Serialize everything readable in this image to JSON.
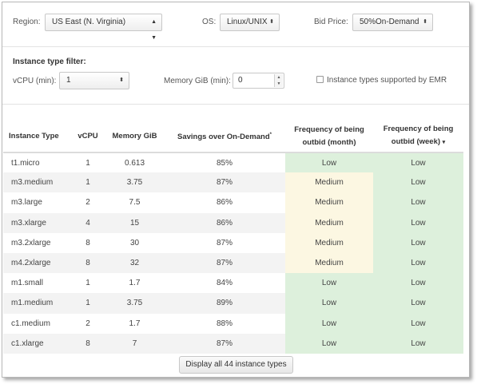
{
  "filters": {
    "region_label": "Region:",
    "region_value": "US East (N. Virginia)",
    "os_label": "OS:",
    "os_value": "Linux/UNIX",
    "bid_label": "Bid Price:",
    "bid_value": "50%On-Demand",
    "instance_filter_heading": "Instance type filter:",
    "vcpu_label": "vCPU (min):",
    "vcpu_value": "1",
    "memory_label": "Memory GiB (min):",
    "memory_value": "0",
    "emr_label": "Instance types supported by EMR",
    "emr_checked": false
  },
  "table": {
    "headers": {
      "instance_type": "Instance Type",
      "vcpu": "vCPU",
      "memory": "Memory GiB",
      "savings": "Savings over On-Demand",
      "savings_mark": "*",
      "freq_month_line1": "Frequency of being",
      "freq_month_line2": "outbid (month)",
      "freq_week_line1": "Frequency of being",
      "freq_week_line2": "outbid (week)",
      "sort_indicator": "▾"
    },
    "rows": [
      {
        "type": "t1.micro",
        "vcpu": "1",
        "memory": "0.613",
        "savings": "85%",
        "month": "Low",
        "week": "Low"
      },
      {
        "type": "m3.medium",
        "vcpu": "1",
        "memory": "3.75",
        "savings": "87%",
        "month": "Medium",
        "week": "Low"
      },
      {
        "type": "m3.large",
        "vcpu": "2",
        "memory": "7.5",
        "savings": "86%",
        "month": "Medium",
        "week": "Low"
      },
      {
        "type": "m3.xlarge",
        "vcpu": "4",
        "memory": "15",
        "savings": "86%",
        "month": "Medium",
        "week": "Low"
      },
      {
        "type": "m3.2xlarge",
        "vcpu": "8",
        "memory": "30",
        "savings": "87%",
        "month": "Medium",
        "week": "Low"
      },
      {
        "type": "m4.2xlarge",
        "vcpu": "8",
        "memory": "32",
        "savings": "87%",
        "month": "Medium",
        "week": "Low"
      },
      {
        "type": "m1.small",
        "vcpu": "1",
        "memory": "1.7",
        "savings": "84%",
        "month": "Low",
        "week": "Low"
      },
      {
        "type": "m1.medium",
        "vcpu": "1",
        "memory": "3.75",
        "savings": "89%",
        "month": "Low",
        "week": "Low"
      },
      {
        "type": "c1.medium",
        "vcpu": "2",
        "memory": "1.7",
        "savings": "88%",
        "month": "Low",
        "week": "Low"
      },
      {
        "type": "c1.xlarge",
        "vcpu": "8",
        "memory": "7",
        "savings": "87%",
        "month": "Low",
        "week": "Low"
      }
    ]
  },
  "colors": {
    "low_bg": "#ddf0dc",
    "medium_bg": "#fcf7e2"
  },
  "display_all_button": "Display all 44 instance types"
}
